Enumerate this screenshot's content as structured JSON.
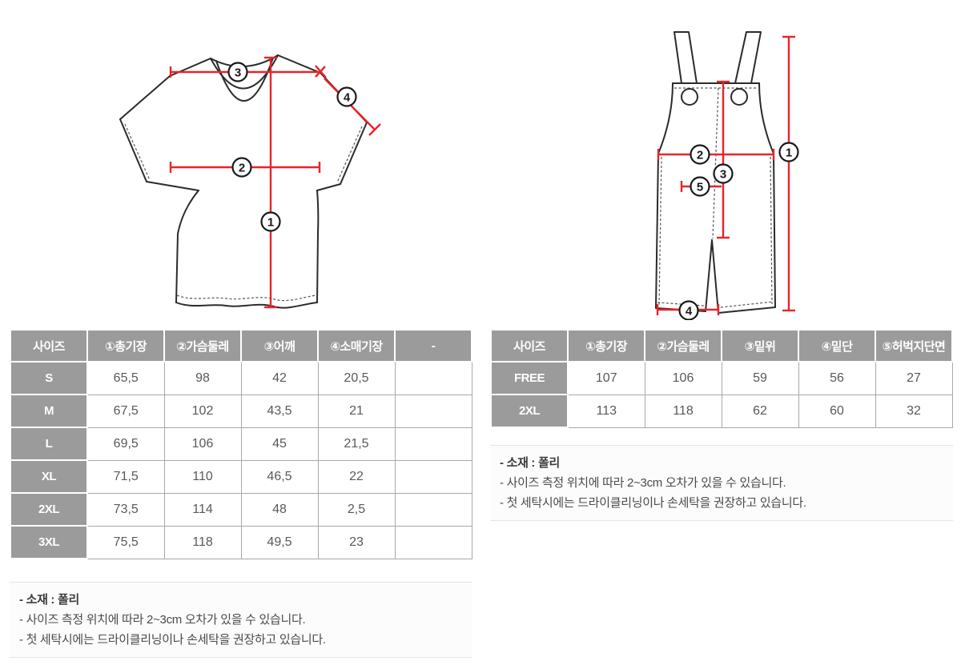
{
  "colors": {
    "measure_red": "#e8242a",
    "outline_black": "#2b2b2b",
    "table_header_bg": "#9b9b9b",
    "table_header_text": "#ffffff",
    "cell_text": "#58595b"
  },
  "tshirt_section": {
    "diagram_labels": {
      "l1": "1",
      "l2": "2",
      "l3": "3",
      "l4": "4"
    },
    "table": {
      "headers": [
        "사이즈",
        "①총기장",
        "②가슴둘레",
        "③어깨",
        "④소매기장",
        "-"
      ],
      "rows": [
        [
          "S",
          "65,5",
          "98",
          "42",
          "20,5",
          ""
        ],
        [
          "M",
          "67,5",
          "102",
          "43,5",
          "21",
          ""
        ],
        [
          "L",
          "69,5",
          "106",
          "45",
          "21,5",
          ""
        ],
        [
          "XL",
          "71,5",
          "110",
          "46,5",
          "22",
          ""
        ],
        [
          "2XL",
          "73,5",
          "114",
          "48",
          "2,5",
          ""
        ],
        [
          "3XL",
          "75,5",
          "118",
          "49,5",
          "23",
          ""
        ]
      ]
    }
  },
  "overalls_section": {
    "diagram_labels": {
      "l1": "1",
      "l2": "2",
      "l3": "3",
      "l4": "4",
      "l5": "5"
    },
    "table": {
      "headers": [
        "사이즈",
        "①총기장",
        "②가슴둘레",
        "③밑위",
        "④밑단",
        "⑤허벅지단면"
      ],
      "rows": [
        [
          "FREE",
          "107",
          "106",
          "59",
          "56",
          "27"
        ],
        [
          "2XL",
          "113",
          "118",
          "62",
          "60",
          "32"
        ]
      ]
    }
  },
  "notes": {
    "material": "- 소재 : 폴리",
    "tolerance": "- 사이즈 측정 위치에 따라 2~3cm 오차가 있을 수 있습니다.",
    "washing": "- 첫 세탁시에는 드라이클리닝이나 손세탁을 권장하고 있습니다."
  }
}
